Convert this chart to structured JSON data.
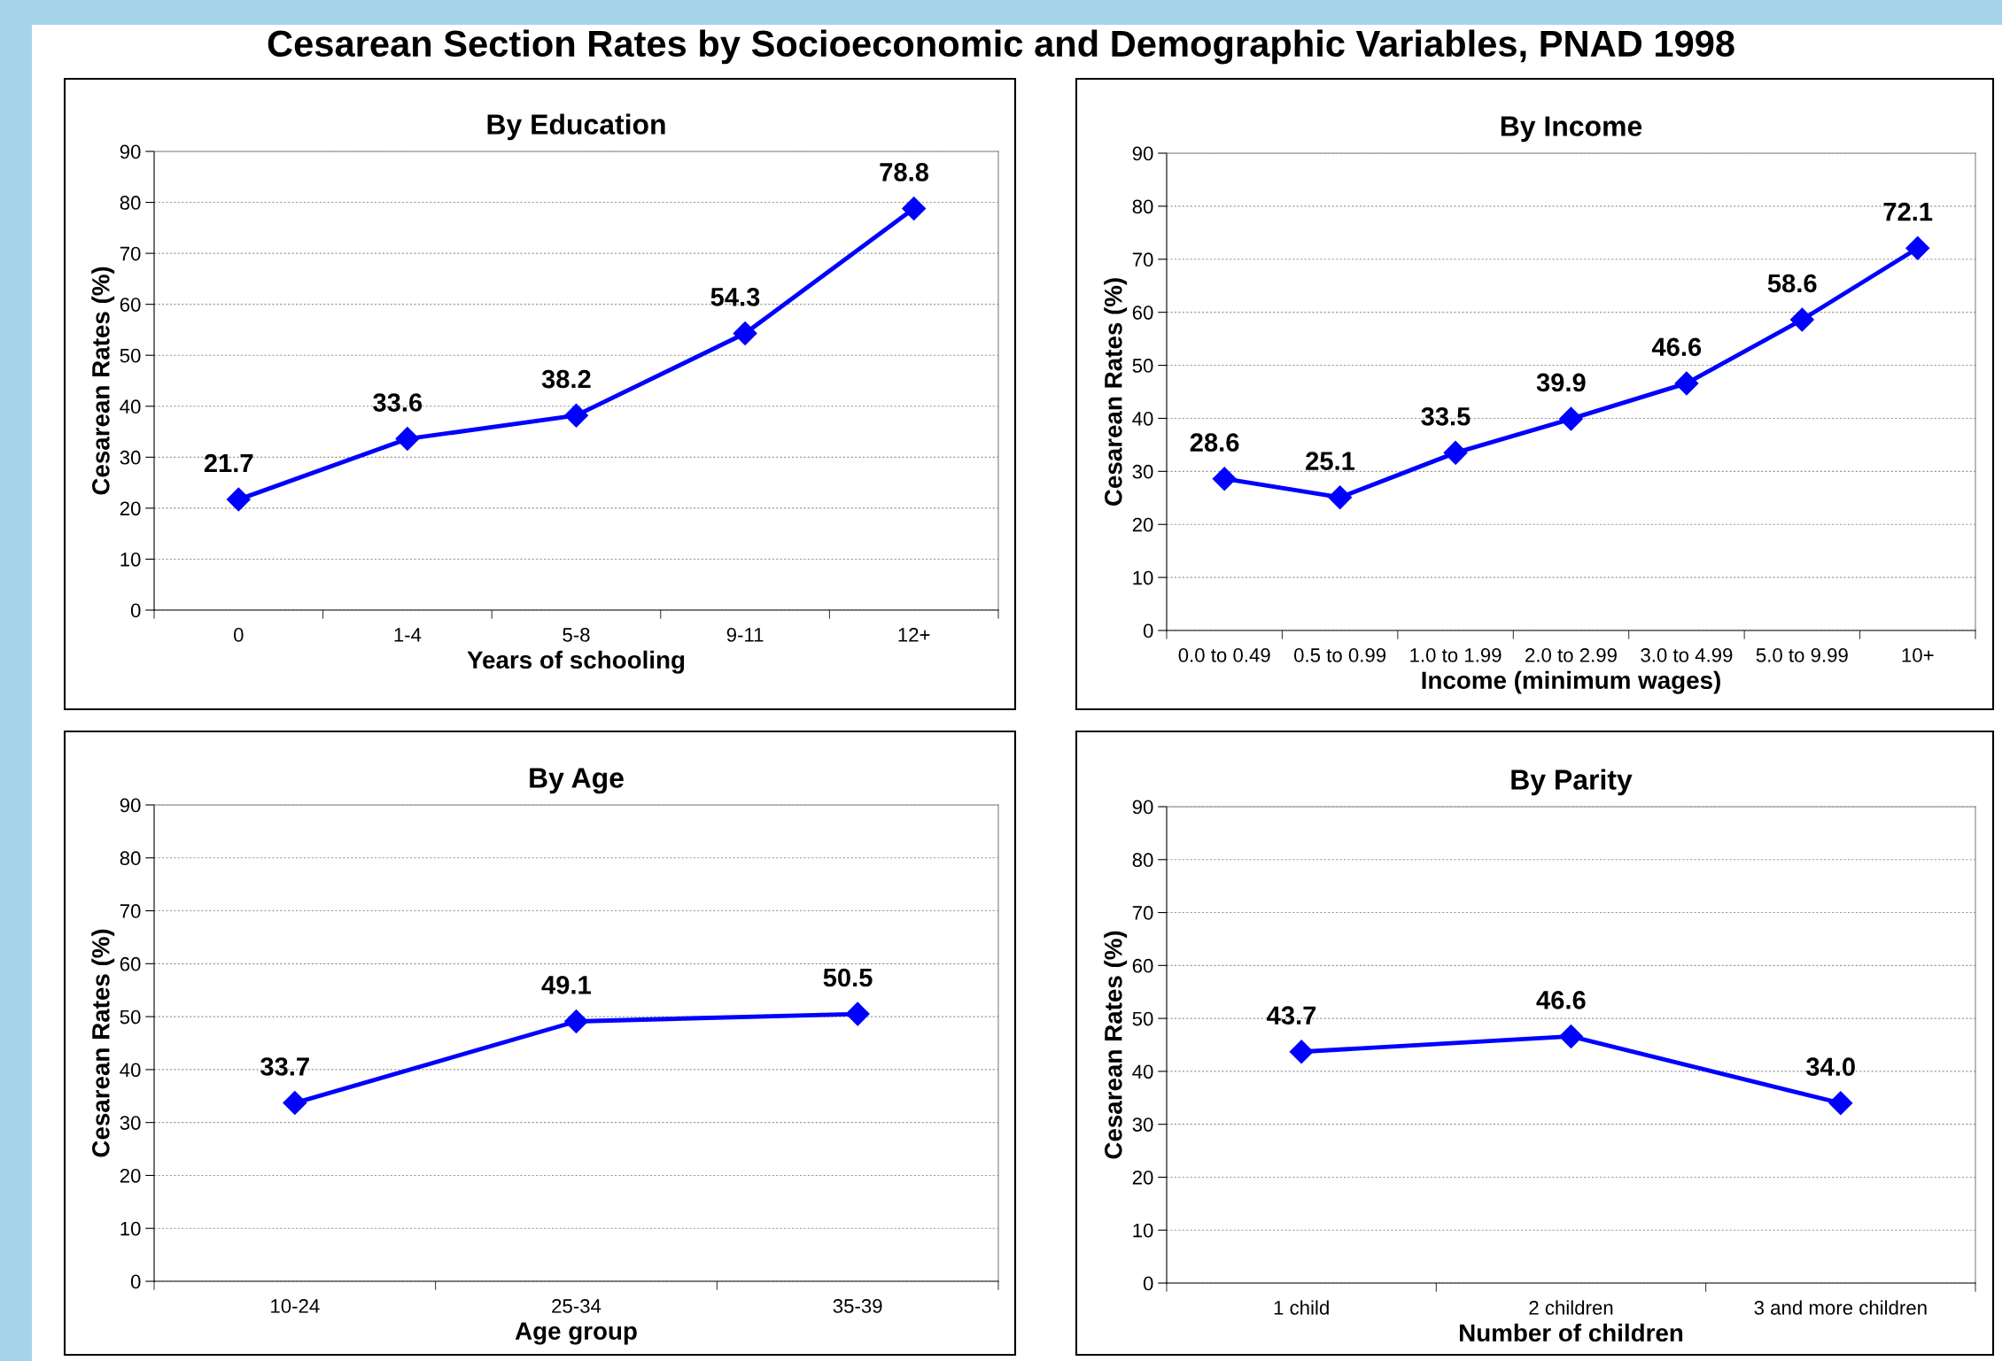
{
  "chart_data": [
    {
      "type": "line",
      "title": "By Education",
      "xlabel": "Years of schooling",
      "ylabel": "Cesarean Rates (%)",
      "categories": [
        "0",
        "1-4",
        "5-8",
        "9-11",
        "12+"
      ],
      "series": [
        {
          "color": "#0000ff",
          "values": [
            21.7,
            33.6,
            38.2,
            54.3,
            78.8
          ],
          "value_labels": [
            "21.7",
            "33.6",
            "38.2",
            "54.3",
            "78.8"
          ]
        }
      ],
      "ylim": [
        0,
        90
      ],
      "yticks": [
        0,
        10,
        20,
        30,
        40,
        50,
        60,
        70,
        80,
        90
      ],
      "grid": "y",
      "marker": "diamond",
      "line_style": "solid",
      "annotations": [
        "Cesarean Section Rates by Socioeconomic and Demographic Variables, PNAD 1998"
      ]
    },
    {
      "type": "line",
      "title": "By Income",
      "xlabel": "Income (minimum wages)",
      "ylabel": "Cesarean Rates (%)",
      "categories": [
        "0.0 to 0.49",
        "0.5 to 0.99",
        "1.0 to 1.99",
        "2.0 to 2.99",
        "3.0 to 4.99",
        "5.0 to 9.99",
        "10+"
      ],
      "series": [
        {
          "color": "#0000ff",
          "values": [
            28.6,
            25.1,
            33.5,
            39.9,
            46.6,
            58.6,
            72.1
          ],
          "value_labels": [
            "28.6",
            "25.1",
            "33.5",
            "39.9",
            "46.6",
            "58.6",
            "72.1"
          ]
        }
      ],
      "ylim": [
        0,
        90
      ],
      "yticks": [
        0,
        10,
        20,
        30,
        40,
        50,
        60,
        70,
        80,
        90
      ],
      "grid": "y",
      "marker": "diamond",
      "line_style": "solid"
    },
    {
      "type": "line",
      "title": "By Age",
      "xlabel": "Age group",
      "ylabel": "Cesarean Rates (%)",
      "categories": [
        "10-24",
        "25-34",
        "35-39"
      ],
      "series": [
        {
          "color": "#0000ff",
          "values": [
            33.7,
            49.1,
            50.5
          ],
          "value_labels": [
            "33.7",
            "49.1",
            "50.5"
          ]
        }
      ],
      "ylim": [
        0,
        90
      ],
      "yticks": [
        0,
        10,
        20,
        30,
        40,
        50,
        60,
        70,
        80,
        90
      ],
      "grid": "y",
      "marker": "diamond",
      "line_style": "solid"
    },
    {
      "type": "line",
      "title": "By Parity",
      "xlabel": "Number of children",
      "ylabel": "Cesarean Rates (%)",
      "categories": [
        "1 child",
        "2 children",
        "3 and more children"
      ],
      "series": [
        {
          "color": "#0000ff",
          "values": [
            43.7,
            46.6,
            34.0
          ],
          "value_labels": [
            "43.7",
            "46.6",
            "34.0"
          ]
        }
      ],
      "ylim": [
        0,
        90
      ],
      "yticks": [
        0,
        10,
        20,
        30,
        40,
        50,
        60,
        70,
        80,
        90
      ],
      "grid": "y",
      "marker": "diamond",
      "line_style": "solid"
    }
  ]
}
